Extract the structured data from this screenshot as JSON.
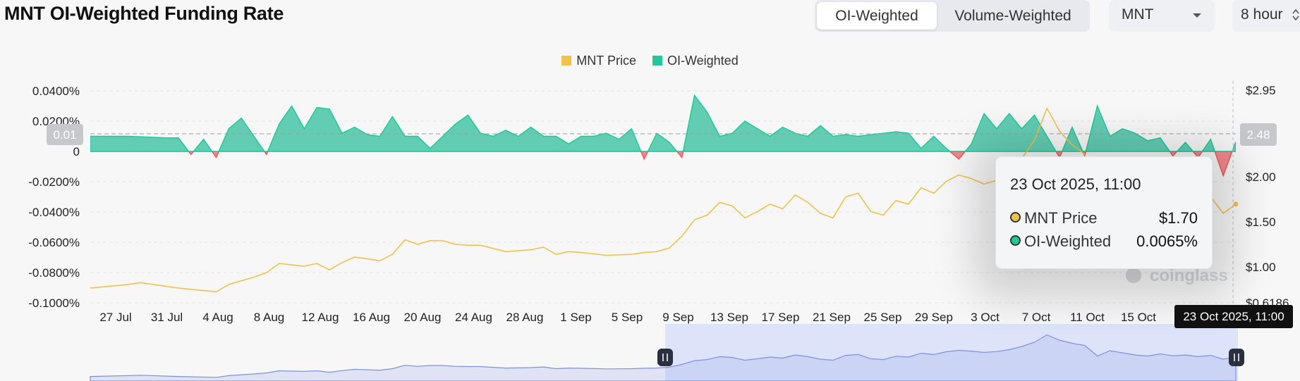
{
  "header": {
    "title": "MNT OI-Weighted Funding Rate",
    "tabs": [
      {
        "label": "OI-Weighted",
        "active": true
      },
      {
        "label": "Volume-Weighted",
        "active": false
      }
    ],
    "coin_select": "MNT",
    "interval_select": "8 hour"
  },
  "tooltip": {
    "date": "23 Oct 2025, 11:00",
    "rows": [
      {
        "name": "MNT Price",
        "value": "$1.70"
      },
      {
        "name": "OI-Weighted",
        "value": "0.0065%"
      }
    ]
  },
  "badges": {
    "left_value": "0.01",
    "right_value": "2.48",
    "x_cursor": "23 Oct 2025, 11:00"
  },
  "watermark": "coinglass",
  "colors": {
    "price": "#f0c24b",
    "positive": "#20c997",
    "positive_fill": "#63cdb4",
    "negative": "#f2555a",
    "navigator": "#dde4fa"
  },
  "chart_data": {
    "type": "area",
    "legend": [
      {
        "name": "MNT Price",
        "color": "#f0c24b"
      },
      {
        "name": "OI-Weighted",
        "color": "#20c997"
      }
    ],
    "x_tick_labels": [
      "27 Jul",
      "31 Jul",
      "4 Aug",
      "8 Aug",
      "12 Aug",
      "16 Aug",
      "20 Aug",
      "24 Aug",
      "28 Aug",
      "1 Sep",
      "5 Sep",
      "9 Sep",
      "13 Sep",
      "17 Sep",
      "21 Sep",
      "25 Sep",
      "29 Sep",
      "3 Oct",
      "7 Oct",
      "11 Oct",
      "15 Oct"
    ],
    "y_left_ticks": [
      "0.0400%",
      "0.0200%",
      "0",
      "-0.0200%",
      "-0.0400%",
      "-0.0600%",
      "-0.0800%",
      "-0.1000%"
    ],
    "y_left_range": [
      -0.1,
      0.04
    ],
    "y_right_ticks": [
      "$2.95",
      "$2.00",
      "$1.50",
      "$1.00",
      "$0.6186"
    ],
    "x_range": [
      "24 Jul 2025",
      "23 Oct 2025"
    ],
    "grid": true,
    "legend_position": "top-center",
    "series": [
      {
        "name": "OI-Weighted",
        "unit": "%",
        "points": [
          [
            "24 Jul",
            0.01
          ],
          [
            "27 Jul",
            0.01
          ],
          [
            "30 Jul",
            0.009
          ],
          [
            "31 Jul",
            0.009
          ],
          [
            "1 Aug",
            -0.002
          ],
          [
            "2 Aug",
            0.008
          ],
          [
            "3 Aug",
            -0.004
          ],
          [
            "4 Aug",
            0.015
          ],
          [
            "5 Aug",
            0.022
          ],
          [
            "6 Aug",
            0.01
          ],
          [
            "7 Aug",
            -0.002
          ],
          [
            "8 Aug",
            0.018
          ],
          [
            "9 Aug",
            0.03
          ],
          [
            "10 Aug",
            0.015
          ],
          [
            "11 Aug",
            0.029
          ],
          [
            "12 Aug",
            0.028
          ],
          [
            "13 Aug",
            0.012
          ],
          [
            "14 Aug",
            0.016
          ],
          [
            "15 Aug",
            0.011
          ],
          [
            "16 Aug",
            0.01
          ],
          [
            "17 Aug",
            0.023
          ],
          [
            "18 Aug",
            0.01
          ],
          [
            "19 Aug",
            0.01
          ],
          [
            "20 Aug",
            0.002
          ],
          [
            "21 Aug",
            0.01
          ],
          [
            "22 Aug",
            0.018
          ],
          [
            "23 Aug",
            0.024
          ],
          [
            "24 Aug",
            0.012
          ],
          [
            "25 Aug",
            0.01
          ],
          [
            "26 Aug",
            0.014
          ],
          [
            "27 Aug",
            0.01
          ],
          [
            "28 Aug",
            0.016
          ],
          [
            "29 Aug",
            0.01
          ],
          [
            "30 Aug",
            0.01
          ],
          [
            "31 Aug",
            0.005
          ],
          [
            "1 Sep",
            0.01
          ],
          [
            "2 Sep",
            0.01
          ],
          [
            "3 Sep",
            0.012
          ],
          [
            "4 Sep",
            0.008
          ],
          [
            "5 Sep",
            0.015
          ],
          [
            "6 Sep",
            -0.005
          ],
          [
            "7 Sep",
            0.012
          ],
          [
            "8 Sep",
            0.006
          ],
          [
            "9 Sep",
            -0.004
          ],
          [
            "10 Sep",
            0.037
          ],
          [
            "11 Sep",
            0.026
          ],
          [
            "12 Sep",
            0.01
          ],
          [
            "13 Sep",
            0.012
          ],
          [
            "14 Sep",
            0.02
          ],
          [
            "15 Sep",
            0.015
          ],
          [
            "16 Sep",
            0.01
          ],
          [
            "17 Sep",
            0.016
          ],
          [
            "18 Sep",
            0.012
          ],
          [
            "19 Sep",
            0.01
          ],
          [
            "20 Sep",
            0.017
          ],
          [
            "21 Sep",
            0.01
          ],
          [
            "22 Sep",
            0.011
          ],
          [
            "23 Sep",
            0.01
          ],
          [
            "24 Sep",
            0.011
          ],
          [
            "25 Sep",
            0.012
          ],
          [
            "26 Sep",
            0.013
          ],
          [
            "27 Sep",
            0.012
          ],
          [
            "28 Sep",
            0.002
          ],
          [
            "29 Sep",
            0.01
          ],
          [
            "30 Sep",
            0.002
          ],
          [
            "1 Oct",
            -0.005
          ],
          [
            "2 Oct",
            0.005
          ],
          [
            "3 Oct",
            0.025
          ],
          [
            "4 Oct",
            0.015
          ],
          [
            "5 Oct",
            0.025
          ],
          [
            "6 Oct",
            0.015
          ],
          [
            "7 Oct",
            0.024
          ],
          [
            "8 Oct",
            0.01
          ],
          [
            "9 Oct",
            -0.004
          ],
          [
            "10 Oct",
            0.016
          ],
          [
            "11 Oct",
            -0.003
          ],
          [
            "12 Oct",
            0.03
          ],
          [
            "13 Oct",
            0.01
          ],
          [
            "14 Oct",
            0.015
          ],
          [
            "15 Oct",
            0.012
          ],
          [
            "16 Oct",
            0.007
          ],
          [
            "17 Oct",
            0.009
          ],
          [
            "18 Oct",
            -0.003
          ],
          [
            "19 Oct",
            0.006
          ],
          [
            "20 Oct",
            -0.004
          ],
          [
            "21 Oct",
            0.008
          ],
          [
            "22 Oct",
            -0.016
          ],
          [
            "23 Oct",
            0.0065
          ]
        ]
      },
      {
        "name": "MNT Price",
        "unit": "$",
        "points": [
          [
            "24 Jul",
            0.78
          ],
          [
            "27 Jul",
            0.82
          ],
          [
            "28 Jul",
            0.84
          ],
          [
            "31 Jul",
            0.78
          ],
          [
            "3 Aug",
            0.74
          ],
          [
            "4 Aug",
            0.82
          ],
          [
            "6 Aug",
            0.9
          ],
          [
            "7 Aug",
            0.95
          ],
          [
            "8 Aug",
            1.05
          ],
          [
            "10 Aug",
            1.02
          ],
          [
            "11 Aug",
            1.05
          ],
          [
            "12 Aug",
            0.98
          ],
          [
            "13 Aug",
            1.06
          ],
          [
            "14 Aug",
            1.12
          ],
          [
            "16 Aug",
            1.08
          ],
          [
            "17 Aug",
            1.15
          ],
          [
            "18 Aug",
            1.31
          ],
          [
            "19 Aug",
            1.26
          ],
          [
            "20 Aug",
            1.3
          ],
          [
            "21 Aug",
            1.3
          ],
          [
            "22 Aug",
            1.26
          ],
          [
            "23 Aug",
            1.25
          ],
          [
            "24 Aug",
            1.25
          ],
          [
            "26 Aug",
            1.18
          ],
          [
            "28 Aug",
            1.2
          ],
          [
            "29 Aug",
            1.23
          ],
          [
            "30 Aug",
            1.15
          ],
          [
            "31 Aug",
            1.18
          ],
          [
            "1 Sep",
            1.17
          ],
          [
            "3 Sep",
            1.14
          ],
          [
            "5 Sep",
            1.15
          ],
          [
            "6 Sep",
            1.17
          ],
          [
            "7 Sep",
            1.18
          ],
          [
            "8 Sep",
            1.22
          ],
          [
            "9 Sep",
            1.35
          ],
          [
            "10 Sep",
            1.53
          ],
          [
            "11 Sep",
            1.58
          ],
          [
            "12 Sep",
            1.72
          ],
          [
            "13 Sep",
            1.68
          ],
          [
            "14 Sep",
            1.55
          ],
          [
            "15 Sep",
            1.62
          ],
          [
            "16 Sep",
            1.7
          ],
          [
            "17 Sep",
            1.65
          ],
          [
            "18 Sep",
            1.8
          ],
          [
            "19 Sep",
            1.72
          ],
          [
            "20 Sep",
            1.6
          ],
          [
            "21 Sep",
            1.55
          ],
          [
            "22 Sep",
            1.78
          ],
          [
            "23 Sep",
            1.82
          ],
          [
            "24 Sep",
            1.62
          ],
          [
            "25 Sep",
            1.58
          ],
          [
            "26 Sep",
            1.74
          ],
          [
            "27 Sep",
            1.7
          ],
          [
            "28 Sep",
            1.88
          ],
          [
            "29 Sep",
            1.82
          ],
          [
            "30 Sep",
            1.95
          ],
          [
            "1 Oct",
            2.02
          ],
          [
            "2 Oct",
            1.98
          ],
          [
            "3 Oct",
            1.92
          ],
          [
            "4 Oct",
            1.96
          ],
          [
            "5 Oct",
            2.05
          ],
          [
            "6 Oct",
            2.2
          ],
          [
            "7 Oct",
            2.4
          ],
          [
            "8 Oct",
            2.75
          ],
          [
            "9 Oct",
            2.5
          ],
          [
            "10 Oct",
            2.35
          ],
          [
            "11 Oct",
            2.25
          ],
          [
            "12 Oct",
            1.75
          ],
          [
            "13 Oct",
            2.0
          ],
          [
            "14 Oct",
            1.9
          ],
          [
            "15 Oct",
            1.8
          ],
          [
            "16 Oct",
            1.75
          ],
          [
            "17 Oct",
            1.85
          ],
          [
            "18 Oct",
            1.76
          ],
          [
            "19 Oct",
            1.8
          ],
          [
            "20 Oct",
            1.72
          ],
          [
            "21 Oct",
            1.78
          ],
          [
            "22 Oct",
            1.6
          ],
          [
            "23 Oct",
            1.7
          ]
        ]
      }
    ]
  }
}
